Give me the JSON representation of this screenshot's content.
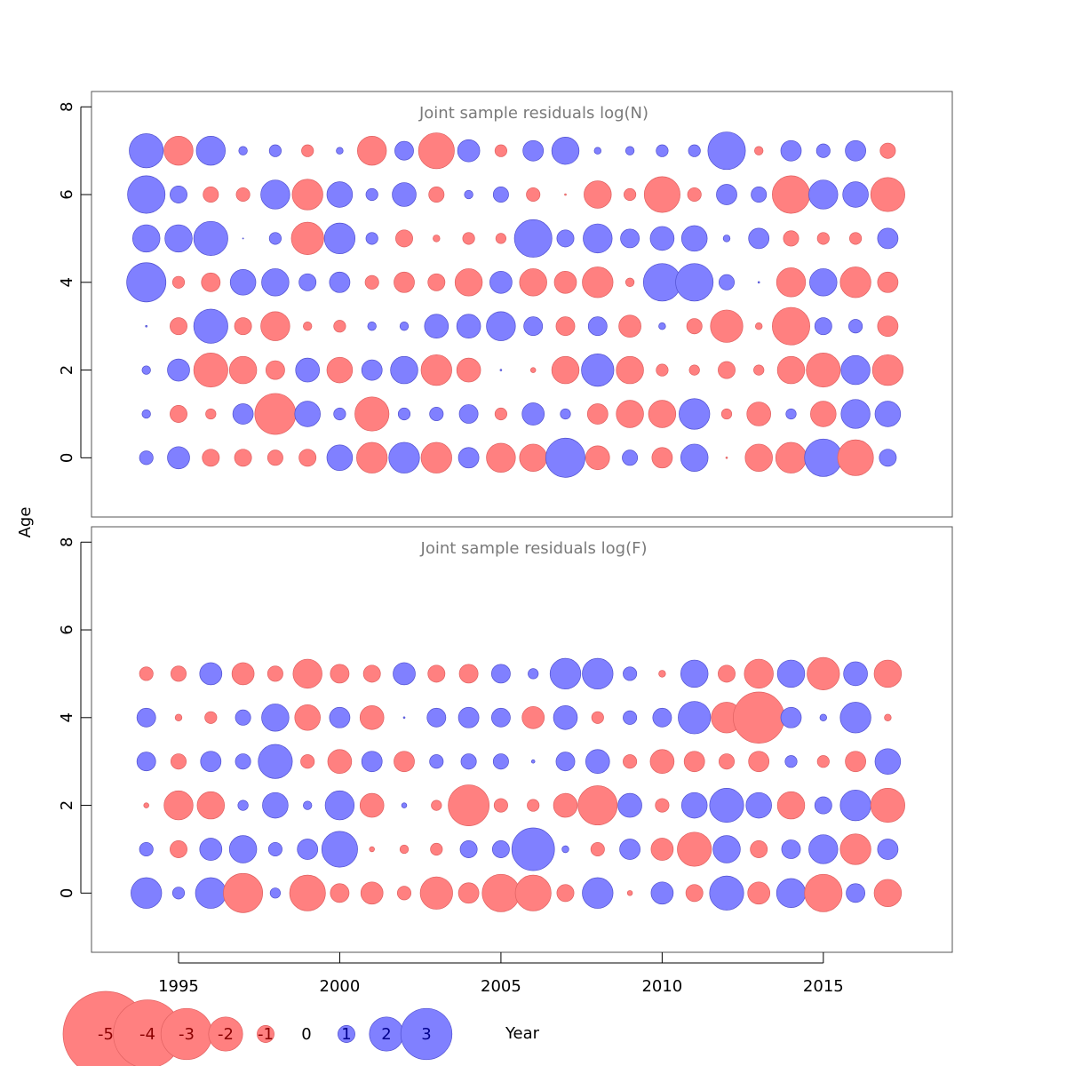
{
  "chart_data": {
    "type": "bubble",
    "xlabel": "Year",
    "ylabel": "Age",
    "xticks": [
      1995,
      2000,
      2005,
      2010,
      2015
    ],
    "xlim": [
      1992.3,
      2019.0
    ],
    "colors": {
      "negative": "#ff8080",
      "positive": "#8080ff"
    },
    "legend": {
      "placement": "bottom-left",
      "labels": [
        "-5",
        "-4",
        "-3",
        "-2",
        "-1",
        "0",
        "1",
        "2",
        "3"
      ],
      "values": [
        -5,
        -4,
        -3,
        -2,
        -1,
        0,
        1,
        2,
        3
      ]
    },
    "panels": [
      {
        "title": "Joint sample residuals log(N)",
        "ylim": [
          -1.35,
          8.35
        ],
        "yticks": [
          0,
          2,
          4,
          6,
          8
        ],
        "years": [
          1994,
          1995,
          1996,
          1997,
          1998,
          1999,
          2000,
          2001,
          2002,
          2003,
          2004,
          2005,
          2006,
          2007,
          2008,
          2009,
          2010,
          2011,
          2012,
          2013,
          2014,
          2015,
          2016,
          2017
        ],
        "ages": [
          0,
          1,
          2,
          3,
          4,
          5,
          6,
          7
        ],
        "residuals": [
          [
            0.8,
            1.3,
            -1.0,
            -1.0,
            -0.9,
            -1.0,
            1.5,
            -1.8,
            1.8,
            -1.8,
            1.2,
            -1.7,
            -1.6,
            2.3,
            -1.4,
            0.9,
            -1.2,
            1.6,
            -0.1,
            -1.6,
            -1.8,
            2.2,
            -2.1,
            1.0
          ],
          [
            0.5,
            -1.0,
            -0.6,
            1.2,
            -2.4,
            1.5,
            0.7,
            -2.0,
            0.7,
            0.8,
            1.1,
            -0.7,
            1.3,
            0.6,
            -1.2,
            -1.6,
            -1.6,
            1.8,
            -0.6,
            -1.4,
            0.6,
            -1.5,
            1.7,
            1.5
          ],
          [
            0.5,
            1.3,
            -2.0,
            -1.6,
            -1.1,
            1.4,
            -1.5,
            1.2,
            1.6,
            -1.8,
            -1.4,
            0.1,
            -0.3,
            -1.6,
            1.9,
            -1.6,
            -0.7,
            -0.6,
            -1.0,
            -0.6,
            -1.6,
            -2.0,
            1.7,
            -1.8
          ],
          [
            0.1,
            -1.0,
            2.0,
            -1.0,
            -1.7,
            -0.5,
            -0.7,
            0.5,
            0.5,
            1.4,
            1.4,
            1.7,
            1.1,
            -1.1,
            1.1,
            -1.3,
            0.4,
            -0.9,
            -1.9,
            -0.4,
            -2.2,
            1.0,
            0.8,
            -1.2
          ],
          [
            2.3,
            -0.7,
            -1.1,
            1.5,
            1.6,
            1.0,
            1.2,
            -0.8,
            -1.2,
            -1.0,
            -1.6,
            1.3,
            -1.6,
            -1.3,
            -1.8,
            -0.5,
            2.2,
            2.2,
            0.9,
            0.1,
            -1.7,
            1.6,
            -1.8,
            -1.2
          ],
          [
            1.6,
            1.6,
            2.0,
            0.05,
            0.7,
            -1.9,
            1.8,
            0.7,
            -1.0,
            -0.4,
            -0.7,
            -0.6,
            2.2,
            1.0,
            1.7,
            1.1,
            1.4,
            1.5,
            0.4,
            1.2,
            -0.9,
            -0.7,
            -0.7,
            1.2
          ],
          [
            2.2,
            1.0,
            -0.9,
            -0.8,
            1.7,
            -1.8,
            1.5,
            0.7,
            1.4,
            -0.9,
            0.5,
            0.9,
            -0.8,
            -0.1,
            -1.6,
            -0.7,
            -2.1,
            -0.8,
            1.2,
            0.9,
            -2.2,
            1.7,
            1.5,
            -2.0
          ],
          [
            2.0,
            -1.7,
            1.7,
            0.5,
            0.7,
            -0.7,
            0.4,
            -1.7,
            1.1,
            -2.1,
            1.3,
            -0.7,
            1.2,
            1.6,
            0.4,
            0.5,
            0.7,
            0.7,
            2.2,
            -0.5,
            1.2,
            0.8,
            1.2,
            -0.9
          ]
        ]
      },
      {
        "title": "Joint sample residuals log(F)",
        "ylim": [
          -1.35,
          8.35
        ],
        "yticks": [
          0,
          2,
          4,
          6,
          8
        ],
        "years": [
          1994,
          1995,
          1996,
          1997,
          1998,
          1999,
          2000,
          2001,
          2002,
          2003,
          2004,
          2005,
          2006,
          2007,
          2008,
          2009,
          2010,
          2011,
          2012,
          2013,
          2014,
          2015,
          2016,
          2017
        ],
        "ages": [
          0,
          1,
          2,
          3,
          4,
          5
        ],
        "residuals": [
          [
            1.8,
            0.7,
            1.8,
            -2.3,
            0.6,
            -2.1,
            -1.1,
            -1.3,
            -0.8,
            -1.9,
            -1.2,
            -2.2,
            -2.1,
            -1.0,
            1.8,
            -0.3,
            1.3,
            -1.0,
            2.0,
            -1.3,
            1.7,
            -2.2,
            1.1,
            -1.6
          ],
          [
            0.8,
            -1.0,
            1.3,
            1.6,
            0.8,
            1.2,
            2.1,
            -0.3,
            -0.5,
            -0.7,
            1.0,
            1.0,
            2.5,
            0.4,
            -0.8,
            1.2,
            -1.3,
            -2.0,
            1.6,
            -1.0,
            1.1,
            1.7,
            -1.8,
            1.2
          ],
          [
            -0.3,
            -1.7,
            -1.6,
            0.6,
            1.5,
            0.5,
            1.7,
            -1.4,
            0.3,
            -0.6,
            -2.4,
            -0.8,
            -0.7,
            -1.4,
            -2.3,
            1.4,
            -0.8,
            1.5,
            2.0,
            1.5,
            -1.6,
            1.0,
            1.8,
            -2.0
          ],
          [
            1.1,
            -0.9,
            1.2,
            0.9,
            2.0,
            -0.8,
            -1.4,
            1.2,
            -1.2,
            0.8,
            0.9,
            0.9,
            0.2,
            1.1,
            1.4,
            -0.8,
            -1.4,
            -1.2,
            -0.9,
            -1.2,
            0.7,
            -0.7,
            -1.2,
            1.5
          ],
          [
            1.1,
            -0.4,
            -0.7,
            0.9,
            1.6,
            -1.5,
            1.2,
            -1.4,
            0.1,
            1.1,
            1.2,
            1.1,
            -1.3,
            1.4,
            -0.7,
            0.8,
            1.1,
            1.9,
            -1.8,
            -3.0,
            1.2,
            0.4,
            1.8,
            -0.4
          ],
          [
            -0.8,
            -0.9,
            1.3,
            -1.3,
            -0.9,
            -1.7,
            -1.1,
            -1.0,
            1.3,
            -1.0,
            -1.1,
            1.1,
            0.6,
            1.8,
            1.8,
            0.8,
            -0.4,
            1.6,
            -1.0,
            -1.7,
            1.6,
            -1.9,
            1.4,
            -1.6
          ]
        ]
      }
    ]
  }
}
